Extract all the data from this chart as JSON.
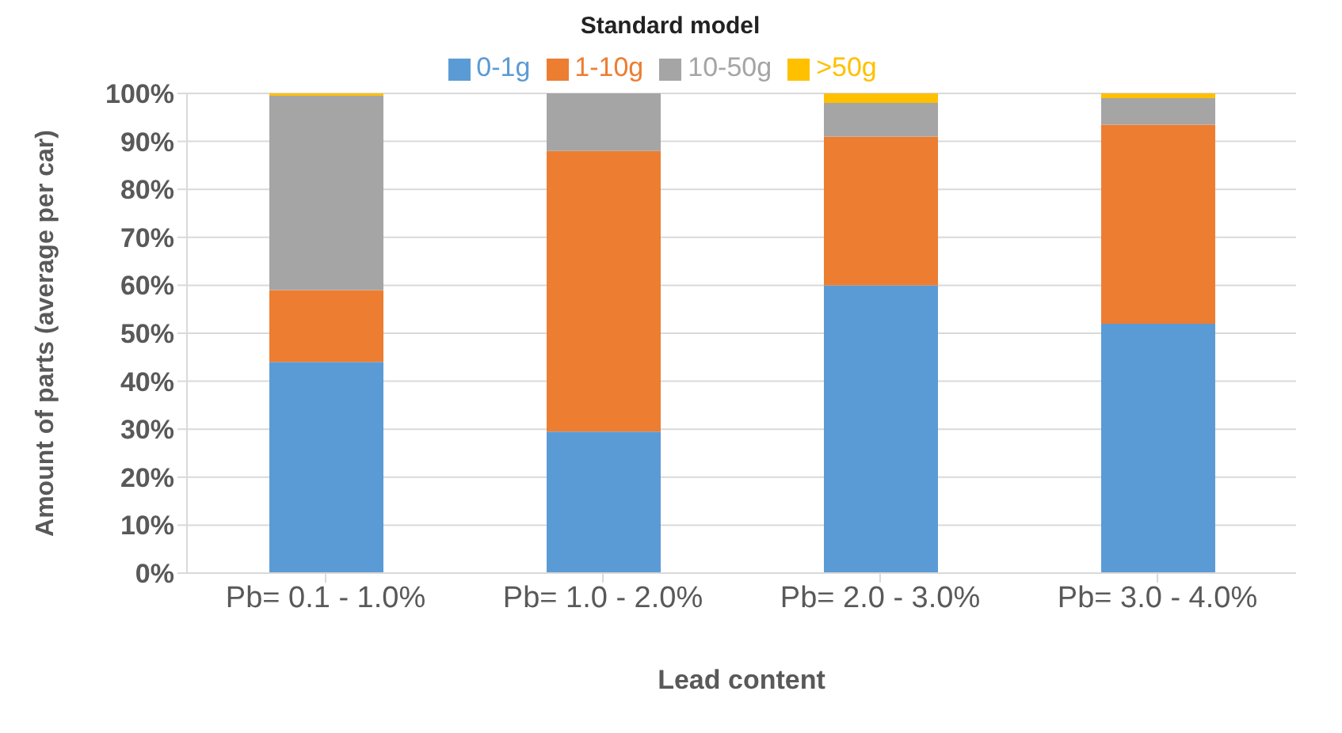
{
  "chart_data": {
    "type": "bar",
    "title": "Standard model",
    "xlabel": "Lead content",
    "ylabel": "Amount of parts (average per car)",
    "categories": [
      "Pb= 0.1 - 1.0%",
      "Pb= 1.0 - 2.0%",
      "Pb= 2.0 - 3.0%",
      "Pb= 3.0 - 4.0%"
    ],
    "series": [
      {
        "name": "0-1g",
        "color": "#5b9bd5",
        "values": [
          44,
          29.5,
          60,
          52
        ]
      },
      {
        "name": "1-10g",
        "color": "#ed7d31",
        "values": [
          15,
          58.5,
          31,
          41.5
        ]
      },
      {
        "name": "10-50g",
        "color": "#a5a5a5",
        "values": [
          40.5,
          12,
          7,
          5.5
        ]
      },
      {
        "name": ">50g",
        "color": "#ffc000",
        "values": [
          0.5,
          0,
          2,
          1
        ]
      }
    ],
    "stacked": true,
    "ylim": [
      0,
      100
    ],
    "yticks": [
      {
        "value": 0,
        "label": "0%"
      },
      {
        "value": 10,
        "label": "10%"
      },
      {
        "value": 20,
        "label": "20%"
      },
      {
        "value": 30,
        "label": "30%"
      },
      {
        "value": 40,
        "label": "40%"
      },
      {
        "value": 50,
        "label": "50%"
      },
      {
        "value": 60,
        "label": "60%"
      },
      {
        "value": 70,
        "label": "70%"
      },
      {
        "value": 80,
        "label": "80%"
      },
      {
        "value": 90,
        "label": "90%"
      },
      {
        "value": 100,
        "label": "100%"
      }
    ],
    "grid": "y",
    "legend": "top"
  }
}
